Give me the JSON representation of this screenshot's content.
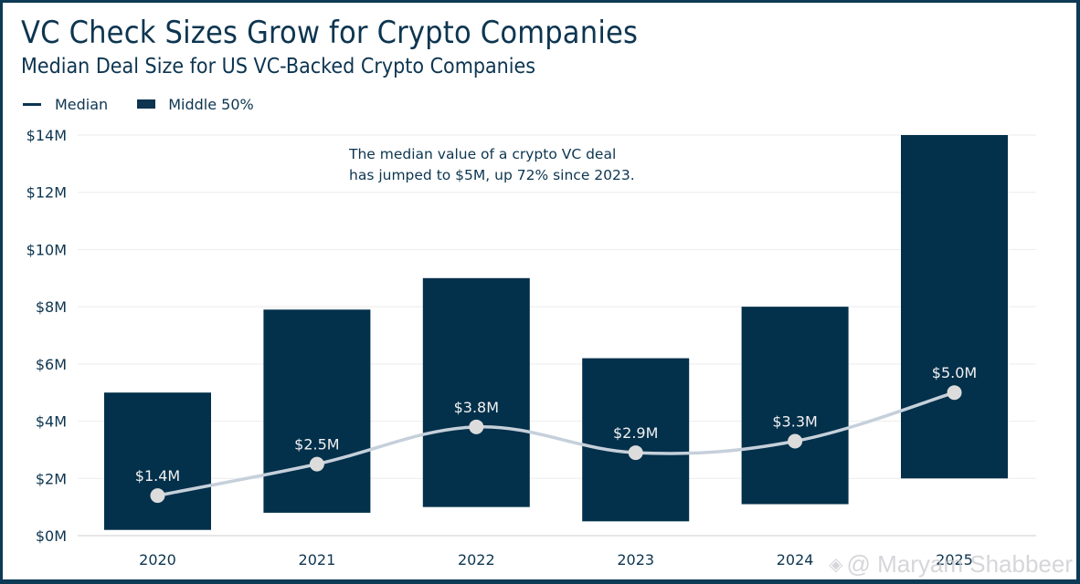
{
  "header": {
    "title": "VC Check Sizes Grow for Crypto Companies",
    "subtitle": "Median Deal Size for US VC-Backed Crypto Companies"
  },
  "legend": {
    "items": [
      {
        "label": "Median",
        "icon": "line-swatch-icon"
      },
      {
        "label": "Middle 50%",
        "icon": "box-swatch-icon"
      }
    ]
  },
  "watermark": {
    "icon": "diamond-logo-icon",
    "text": "@ Maryam Shabbeer"
  },
  "colors": {
    "bar": "#03304a",
    "median_line": "#c5d0db",
    "median_dot": "#dcdcdc",
    "text": "#0d3550",
    "grid": "#efefef",
    "frame": "#0d3a55"
  },
  "chart_data": {
    "type": "bar",
    "title": "VC Check Sizes Grow for Crypto Companies",
    "subtitle": "Median Deal Size for US VC-Backed Crypto Companies",
    "xlabel": "",
    "ylabel": "",
    "categories": [
      "2020",
      "2021",
      "2022",
      "2023",
      "2024",
      "2025"
    ],
    "series": [
      {
        "name": "Middle 50%",
        "type": "range-bar",
        "low": [
          0.2,
          0.8,
          1.0,
          0.5,
          1.1,
          2.0
        ],
        "high": [
          5.0,
          7.9,
          9.0,
          6.2,
          8.0,
          14.0
        ]
      },
      {
        "name": "Median",
        "type": "line",
        "values": [
          1.4,
          2.5,
          3.8,
          2.9,
          3.3,
          5.0
        ],
        "labels": [
          "$1.4M",
          "$2.5M",
          "$3.8M",
          "$2.9M",
          "$3.3M",
          "$5.0M"
        ]
      }
    ],
    "ylim": [
      0,
      14
    ],
    "yticks": [
      0,
      2,
      4,
      6,
      8,
      10,
      12,
      14
    ],
    "ytick_labels": [
      "$0M",
      "$2M",
      "$4M",
      "$6M",
      "$8M",
      "$10M",
      "$12M",
      "$14M"
    ],
    "grid": true,
    "legend_position": "top-left",
    "annotation": {
      "lines": [
        "The median value of a crypto VC deal",
        "has jumped to $5M, up 72% since 2023."
      ]
    }
  }
}
